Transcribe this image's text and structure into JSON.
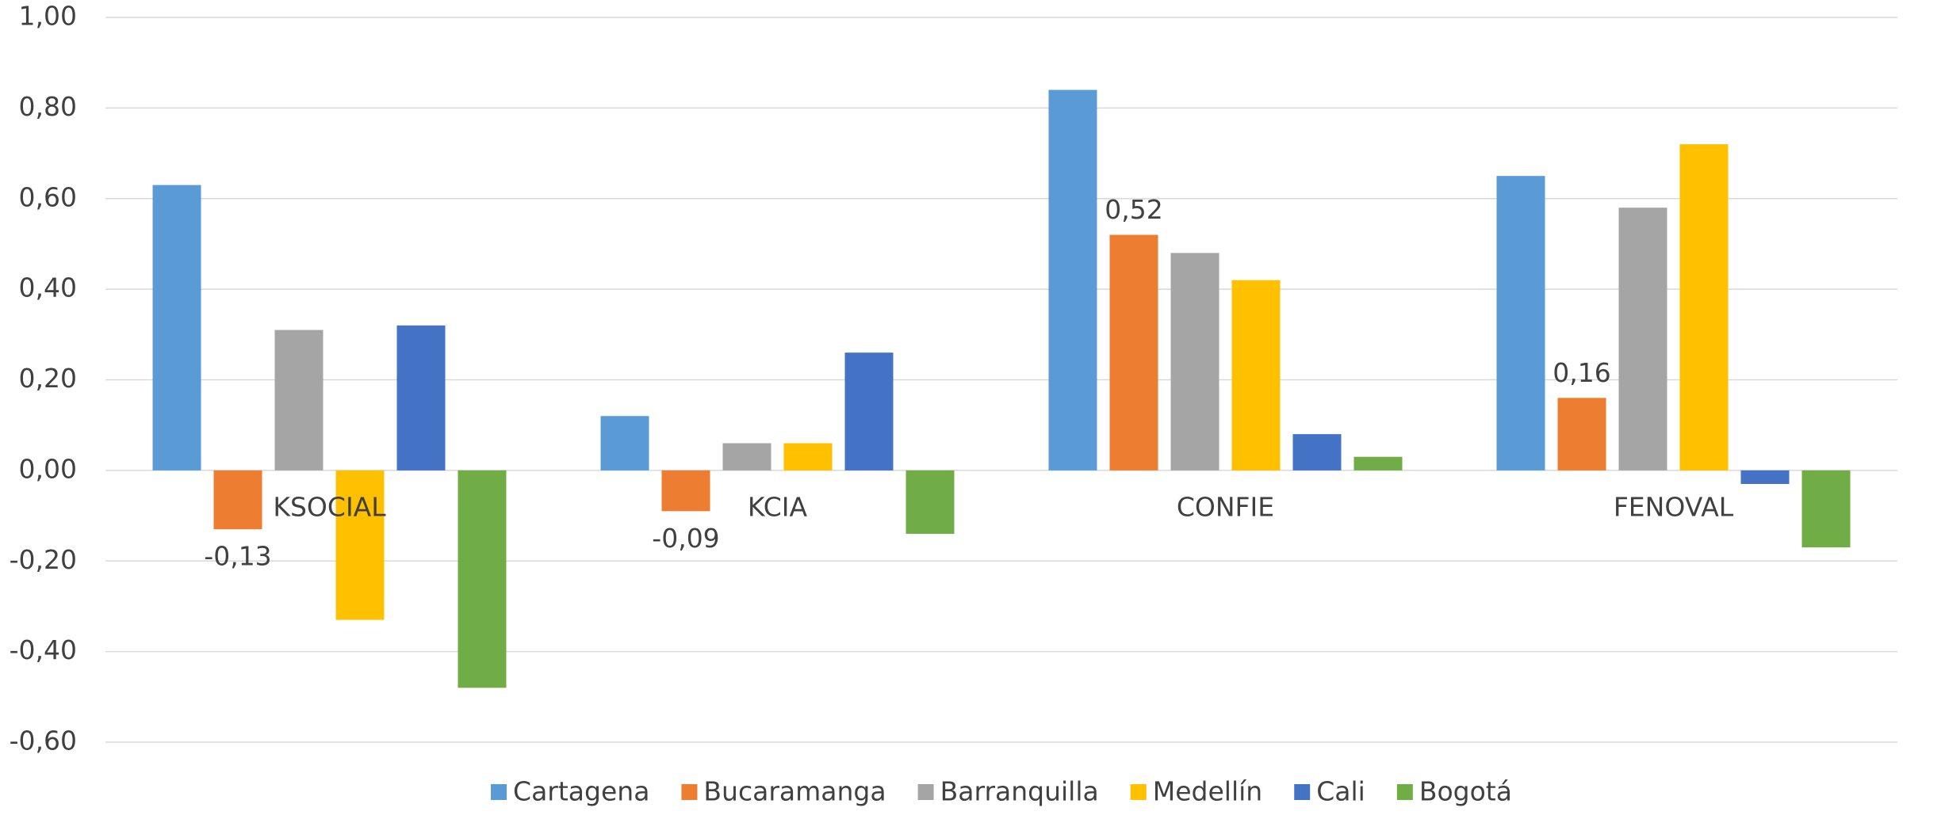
{
  "chart_data": {
    "type": "bar",
    "categories": [
      "KSOCIAL",
      "KCIA",
      "CONFIE",
      "FENOVAL"
    ],
    "series": [
      {
        "name": "Cartagena",
        "color": "#5b9bd5",
        "values": [
          0.63,
          0.12,
          0.84,
          0.65
        ]
      },
      {
        "name": "Bucaramanga",
        "color": "#ed7d31",
        "values": [
          -0.13,
          -0.09,
          0.52,
          0.16
        ],
        "value_labels": [
          "-0,13",
          "-0,09",
          "0,52",
          "0,16"
        ]
      },
      {
        "name": "Barranquilla",
        "color": "#a5a5a5",
        "values": [
          0.31,
          0.06,
          0.48,
          0.58
        ]
      },
      {
        "name": "Medellín",
        "color": "#ffc000",
        "values": [
          -0.33,
          0.06,
          0.42,
          0.72
        ]
      },
      {
        "name": "Cali",
        "color": "#4472c4",
        "values": [
          0.32,
          0.26,
          0.08,
          -0.03
        ]
      },
      {
        "name": "Bogotá",
        "color": "#70ad47",
        "values": [
          -0.48,
          -0.14,
          0.03,
          -0.17
        ]
      }
    ],
    "ylim": [
      -0.6,
      1.0
    ],
    "yticks": [
      {
        "value": -0.6,
        "label": "-0,60"
      },
      {
        "value": -0.4,
        "label": "-0,40"
      },
      {
        "value": -0.2,
        "label": "-0,20"
      },
      {
        "value": 0,
        "label": "0,00"
      },
      {
        "value": 0.2,
        "label": "0,20"
      },
      {
        "value": 0.4,
        "label": "0,40"
      },
      {
        "value": 0.6,
        "label": "0,60"
      },
      {
        "value": 0.8,
        "label": "0,80"
      },
      {
        "value": 1.0,
        "label": "1,00"
      }
    ],
    "grid": true,
    "legend": "bottom"
  }
}
